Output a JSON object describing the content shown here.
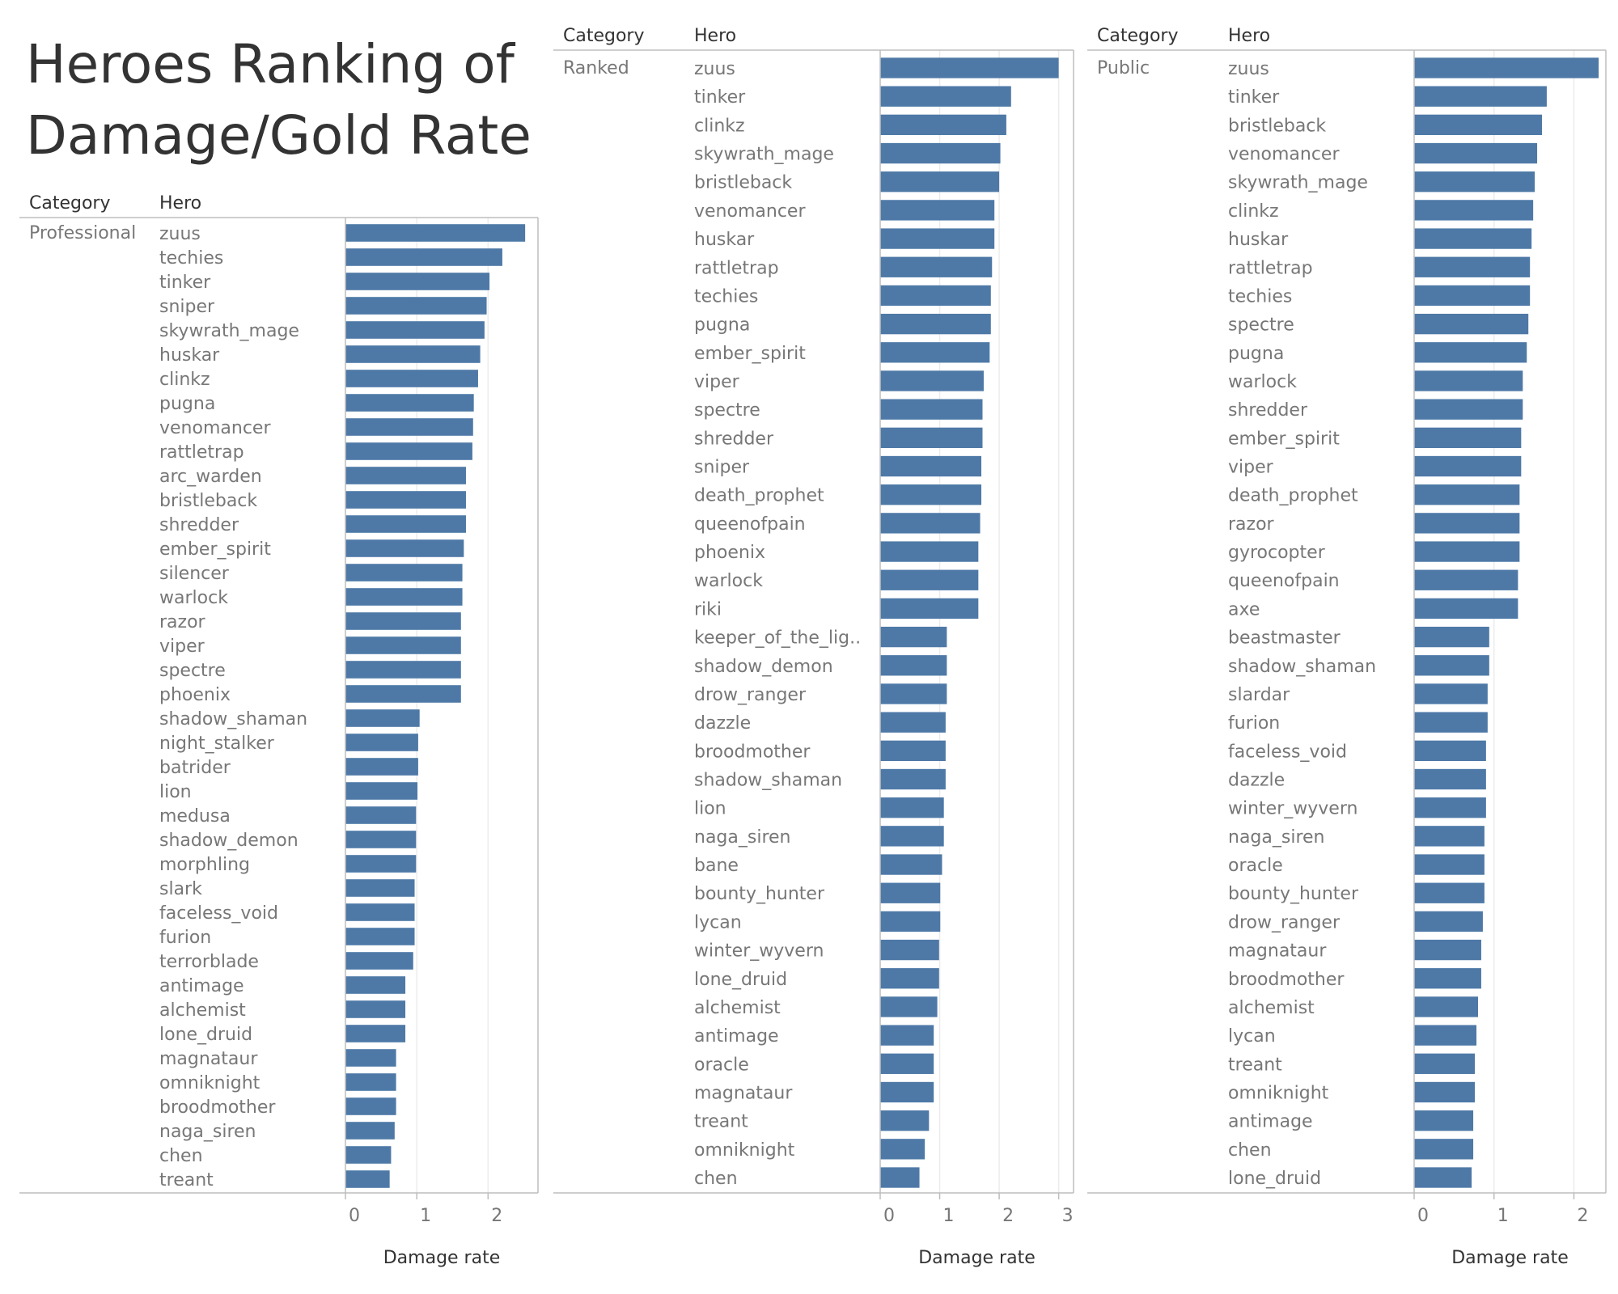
{
  "title": "Heroes Ranking of Damage/Gold Rate",
  "colors": {
    "bar": "#4e79a7",
    "axis": "#bdbdbd",
    "grid": "#ececec",
    "label": "#777777",
    "header": "#333333"
  },
  "chart_data": [
    {
      "type": "bar",
      "orientation": "horizontal",
      "category_header": "Category",
      "hero_header": "Hero",
      "category": "Professional",
      "xlabel": "Damage rate",
      "xlim": [
        0,
        2.7
      ],
      "xticks": [
        0,
        1,
        2
      ],
      "grid": true,
      "categories": [
        "zuus",
        "techies",
        "tinker",
        "sniper",
        "skywrath_mage",
        "huskar",
        "clinkz",
        "pugna",
        "venomancer",
        "rattletrap",
        "arc_warden",
        "bristleback",
        "shredder",
        "ember_spirit",
        "silencer",
        "warlock",
        "razor",
        "viper",
        "spectre",
        "phoenix",
        "shadow_shaman",
        "night_stalker",
        "batrider",
        "lion",
        "medusa",
        "shadow_demon",
        "morphling",
        "slark",
        "faceless_void",
        "furion",
        "terrorblade",
        "antimage",
        "alchemist",
        "lone_druid",
        "magnataur",
        "omniknight",
        "broodmother",
        "naga_siren",
        "chen",
        "treant"
      ],
      "values": [
        2.52,
        2.2,
        2.02,
        1.98,
        1.95,
        1.89,
        1.86,
        1.8,
        1.79,
        1.78,
        1.69,
        1.69,
        1.69,
        1.66,
        1.64,
        1.64,
        1.62,
        1.62,
        1.62,
        1.62,
        1.04,
        1.02,
        1.02,
        1.01,
        0.99,
        0.99,
        0.99,
        0.97,
        0.97,
        0.97,
        0.95,
        0.84,
        0.84,
        0.84,
        0.71,
        0.71,
        0.71,
        0.69,
        0.64,
        0.62
      ]
    },
    {
      "type": "bar",
      "orientation": "horizontal",
      "category_header": "Category",
      "hero_header": "Hero",
      "category": "Ranked",
      "xlabel": "Damage rate",
      "xlim": [
        0,
        3.25
      ],
      "xticks": [
        0,
        1,
        2,
        3
      ],
      "grid": true,
      "categories": [
        "zuus",
        "tinker",
        "clinkz",
        "skywrath_mage",
        "bristleback",
        "venomancer",
        "huskar",
        "rattletrap",
        "techies",
        "pugna",
        "ember_spirit",
        "viper",
        "spectre",
        "shredder",
        "sniper",
        "death_prophet",
        "queenofpain",
        "phoenix",
        "warlock",
        "riki",
        "keeper_of_the_lig..",
        "shadow_demon",
        "drow_ranger",
        "dazzle",
        "broodmother",
        "shadow_shaman",
        "lion",
        "naga_siren",
        "bane",
        "bounty_hunter",
        "lycan",
        "winter_wyvern",
        "lone_druid",
        "alchemist",
        "antimage",
        "oracle",
        "magnataur",
        "treant",
        "omniknight",
        "chen"
      ],
      "values": [
        3.0,
        2.2,
        2.12,
        2.02,
        2.0,
        1.92,
        1.92,
        1.88,
        1.86,
        1.86,
        1.84,
        1.74,
        1.72,
        1.72,
        1.7,
        1.7,
        1.68,
        1.65,
        1.65,
        1.65,
        1.12,
        1.12,
        1.12,
        1.1,
        1.1,
        1.1,
        1.07,
        1.07,
        1.04,
        1.01,
        1.01,
        0.99,
        0.99,
        0.96,
        0.9,
        0.9,
        0.9,
        0.82,
        0.75,
        0.66
      ]
    },
    {
      "type": "bar",
      "orientation": "horizontal",
      "category_header": "Category",
      "hero_header": "Hero",
      "category": "Public",
      "xlabel": "Damage rate",
      "xlim": [
        0,
        2.4
      ],
      "xticks": [
        0,
        1,
        2
      ],
      "grid": true,
      "categories": [
        "zuus",
        "tinker",
        "bristleback",
        "venomancer",
        "skywrath_mage",
        "clinkz",
        "huskar",
        "rattletrap",
        "techies",
        "spectre",
        "pugna",
        "warlock",
        "shredder",
        "ember_spirit",
        "viper",
        "death_prophet",
        "razor",
        "gyrocopter",
        "queenofpain",
        "axe",
        "beastmaster",
        "shadow_shaman",
        "slardar",
        "furion",
        "faceless_void",
        "dazzle",
        "winter_wyvern",
        "naga_siren",
        "oracle",
        "bounty_hunter",
        "drow_ranger",
        "magnataur",
        "broodmother",
        "alchemist",
        "lycan",
        "treant",
        "omniknight",
        "antimage",
        "chen",
        "lone_druid"
      ],
      "values": [
        2.31,
        1.66,
        1.6,
        1.54,
        1.51,
        1.49,
        1.47,
        1.45,
        1.45,
        1.43,
        1.41,
        1.36,
        1.36,
        1.34,
        1.34,
        1.32,
        1.32,
        1.32,
        1.3,
        1.3,
        0.94,
        0.94,
        0.92,
        0.92,
        0.9,
        0.9,
        0.9,
        0.88,
        0.88,
        0.88,
        0.86,
        0.84,
        0.84,
        0.8,
        0.78,
        0.76,
        0.76,
        0.74,
        0.74,
        0.72
      ]
    }
  ]
}
